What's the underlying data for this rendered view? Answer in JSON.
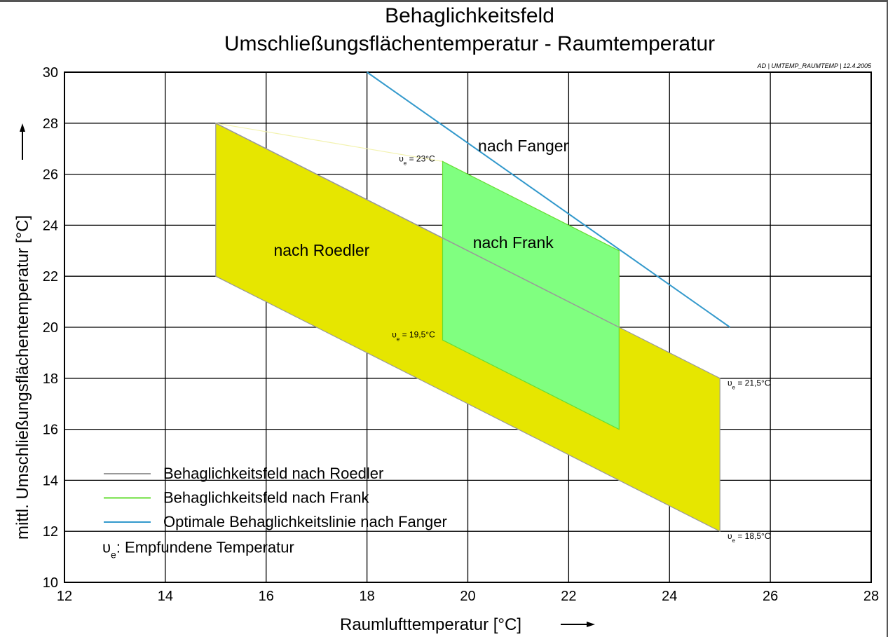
{
  "chart_data": {
    "type": "area",
    "title": "Behaglichkeitsfeld",
    "subtitle": "Umschließungsflächentemperatur - Raumtemperatur",
    "credit": "AD | UMTEMP_RAUMTEMP | 12.4.2005",
    "xlabel": "Raumlufttemperatur [°C]",
    "ylabel": "mittl. Umschließungsflächentemperatur [°C]",
    "xlim": [
      12,
      28
    ],
    "ylim": [
      10,
      30
    ],
    "x_ticks": [
      12,
      14,
      16,
      18,
      20,
      22,
      24,
      26,
      28
    ],
    "y_ticks": [
      10,
      12,
      14,
      16,
      18,
      20,
      22,
      24,
      26,
      28,
      30
    ],
    "grid": true,
    "colors": {
      "roedler_fill": "#e6e600",
      "roedler_line": "#999999",
      "frank_fill": "#80ff80",
      "frank_line": "#66dd33",
      "fanger_line": "#3399cc",
      "grid": "#000000"
    },
    "series": [
      {
        "name": "Behaglichkeitsfeld nach Roedler",
        "kind": "polygon",
        "label": "nach Roedler",
        "points": [
          [
            15,
            22
          ],
          [
            15,
            28
          ],
          [
            25,
            18
          ],
          [
            25,
            12
          ]
        ]
      },
      {
        "name": "Behaglichkeitsfeld nach Frank",
        "kind": "polygon",
        "label": "nach Frank",
        "points": [
          [
            19.5,
            19.5
          ],
          [
            19.5,
            26.5
          ],
          [
            23,
            23
          ],
          [
            23,
            16
          ]
        ]
      },
      {
        "name": "Optimale Behaglichkeitslinie nach Fanger",
        "kind": "line",
        "label": "nach Fanger",
        "points": [
          [
            18,
            30
          ],
          [
            25.2,
            20
          ]
        ]
      }
    ],
    "roedler_diagonal": [
      [
        15,
        28
      ],
      [
        23,
        20
      ]
    ],
    "roedler_top_connector": [
      [
        15,
        28
      ],
      [
        19.5,
        26.5
      ]
    ],
    "region_labels": [
      {
        "text": "nach Roedler",
        "x": 17.1,
        "y": 22.8
      },
      {
        "text": "nach Frank",
        "x": 20.9,
        "y": 23.1
      },
      {
        "text": "nach Fanger",
        "x": 21.1,
        "y": 26.9
      }
    ],
    "annotations": [
      {
        "sym": "υ",
        "sub": "e",
        "value": " = 23°C",
        "x": 19.35,
        "y": 26.5,
        "anchor": "end"
      },
      {
        "sym": "υ",
        "sub": "e",
        "value": " = 19,5°C",
        "x": 19.35,
        "y": 19.6,
        "anchor": "end"
      },
      {
        "sym": "υ",
        "sub": "e",
        "value": " = 21,5°C",
        "x": 25.15,
        "y": 17.7,
        "anchor": "start"
      },
      {
        "sym": "υ",
        "sub": "e",
        "value": " = 18,5°C",
        "x": 25.15,
        "y": 11.7,
        "anchor": "start"
      }
    ],
    "legend": {
      "position": "bottom-left",
      "items": [
        {
          "text": "Behaglichkeitsfeld nach Roedler",
          "color": "#999999"
        },
        {
          "text": "Behaglichkeitsfeld nach Frank",
          "color": "#66dd33"
        },
        {
          "text": "Optimale Behaglichkeitslinie nach Fanger",
          "color": "#3399cc"
        }
      ],
      "note_sym": "υ",
      "note_sub": "e",
      "note_text": ": Empfundene Temperatur"
    }
  }
}
